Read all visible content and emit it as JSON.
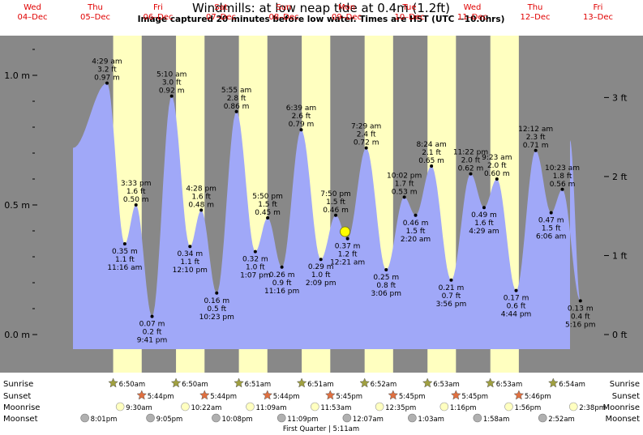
{
  "chart_data": {
    "type": "area",
    "title": "Windmills: at low  neap tide at 0.4m (1.2ft)",
    "subtitle": "Image captured 20 minutes before low water. Times are HST (UTC −10.0hrs)",
    "days": [
      {
        "name": "Wed",
        "date": "04–Dec"
      },
      {
        "name": "Thu",
        "date": "05–Dec"
      },
      {
        "name": "Fri",
        "date": "06–Dec"
      },
      {
        "name": "Sat",
        "date": "07–Dec"
      },
      {
        "name": "Sun",
        "date": "08–Dec"
      },
      {
        "name": "Mon",
        "date": "09–Dec"
      },
      {
        "name": "Tue",
        "date": "10–Dec"
      },
      {
        "name": "Wed",
        "date": "11–Dec"
      },
      {
        "name": "Thu",
        "date": "12–Dec"
      },
      {
        "name": "Fri",
        "date": "13–Dec"
      }
    ],
    "y_left_ticks": [
      "0.0 m",
      "0.5 m",
      "1.0 m"
    ],
    "y_right_ticks": [
      "0 ft",
      "1 ft",
      "2 ft",
      "3 ft"
    ],
    "tides": [
      {
        "day": 1,
        "hour": 4.483,
        "time": "4:29 am",
        "ft": "3.2 ft",
        "m": "0.97 m",
        "height": 0.97,
        "high": true
      },
      {
        "day": 1,
        "hour": 11.267,
        "time": "11:16 am",
        "ft": "1.1 ft",
        "m": "0.35 m",
        "height": 0.35,
        "high": false
      },
      {
        "day": 1,
        "hour": 15.55,
        "time": "3:33 pm",
        "ft": "1.6 ft",
        "m": "0.50 m",
        "height": 0.5,
        "high": true
      },
      {
        "day": 1,
        "hour": 21.683,
        "time": "9:41 pm",
        "ft": "0.2 ft",
        "m": "0.07 m",
        "height": 0.07,
        "high": false
      },
      {
        "day": 2,
        "hour": 5.167,
        "time": "5:10 am",
        "ft": "3.0 ft",
        "m": "0.92 m",
        "height": 0.92,
        "high": true
      },
      {
        "day": 2,
        "hour": 12.167,
        "time": "12:10 pm",
        "ft": "1.1 ft",
        "m": "0.34 m",
        "height": 0.34,
        "high": false
      },
      {
        "day": 2,
        "hour": 16.467,
        "time": "4:28 pm",
        "ft": "1.6 ft",
        "m": "0.48 m",
        "height": 0.48,
        "high": true
      },
      {
        "day": 2,
        "hour": 22.383,
        "time": "10:23 pm",
        "ft": "0.5 ft",
        "m": "0.16 m",
        "height": 0.16,
        "high": false
      },
      {
        "day": 3,
        "hour": 5.917,
        "time": "5:55 am",
        "ft": "2.8 ft",
        "m": "0.86 m",
        "height": 0.86,
        "high": true
      },
      {
        "day": 3,
        "hour": 13.117,
        "time": "1:07 pm",
        "ft": "1.0 ft",
        "m": "0.32 m",
        "height": 0.32,
        "high": false
      },
      {
        "day": 3,
        "hour": 17.833,
        "time": "5:50 pm",
        "ft": "1.5 ft",
        "m": "0.45 m",
        "height": 0.45,
        "high": true
      },
      {
        "day": 3,
        "hour": 23.267,
        "time": "11:16 pm",
        "ft": "0.9 ft",
        "m": "0.26 m",
        "height": 0.26,
        "high": false
      },
      {
        "day": 4,
        "hour": 6.65,
        "time": "6:39 am",
        "ft": "2.6 ft",
        "m": "0.79 m",
        "height": 0.79,
        "high": true
      },
      {
        "day": 4,
        "hour": 14.15,
        "time": "2:09 pm",
        "ft": "1.0 ft",
        "m": "0.29 m",
        "height": 0.29,
        "high": false
      },
      {
        "day": 4,
        "hour": 19.833,
        "time": "7:50 pm",
        "ft": "1.5 ft",
        "m": "0.46 m",
        "height": 0.46,
        "high": true
      },
      {
        "day": 5,
        "hour": 0.35,
        "time": "12:21 am",
        "ft": "1.2 ft",
        "m": "0.37 m",
        "height": 0.37,
        "high": false
      },
      {
        "day": 5,
        "hour": 7.483,
        "time": "7:29 am",
        "ft": "2.4 ft",
        "m": "0.72 m",
        "height": 0.72,
        "high": true
      },
      {
        "day": 5,
        "hour": 15.1,
        "time": "3:06 pm",
        "ft": "0.8 ft",
        "m": "0.25 m",
        "height": 0.25,
        "high": false
      },
      {
        "day": 5,
        "hour": 22.033,
        "time": "10:02 pm",
        "ft": "1.7 ft",
        "m": "0.53 m",
        "height": 0.53,
        "high": true
      },
      {
        "day": 6,
        "hour": 2.333,
        "time": "2:20 am",
        "ft": "1.5 ft",
        "m": "0.46 m",
        "height": 0.46,
        "high": false
      },
      {
        "day": 6,
        "hour": 8.4,
        "time": "8:24 am",
        "ft": "2.1 ft",
        "m": "0.65 m",
        "height": 0.65,
        "high": true
      },
      {
        "day": 6,
        "hour": 15.933,
        "time": "3:56 pm",
        "ft": "0.7 ft",
        "m": "0.21 m",
        "height": 0.21,
        "high": false
      },
      {
        "day": 6,
        "hour": 23.367,
        "time": "11:22 pm",
        "ft": "2.0 ft",
        "m": "0.62 m",
        "height": 0.62,
        "high": true
      },
      {
        "day": 7,
        "hour": 4.483,
        "time": "4:29 am",
        "ft": "1.6 ft",
        "m": "0.49 m",
        "height": 0.49,
        "high": false
      },
      {
        "day": 7,
        "hour": 9.383,
        "time": "9:23 am",
        "ft": "2.0 ft",
        "m": "0.60 m",
        "height": 0.6,
        "high": true
      },
      {
        "day": 7,
        "hour": 16.733,
        "time": "4:44 pm",
        "ft": "0.6 ft",
        "m": "0.17 m",
        "height": 0.17,
        "high": false
      },
      {
        "day": 8,
        "hour": 0.2,
        "time": "12:12 am",
        "ft": "2.3 ft",
        "m": "0.71 m",
        "height": 0.71,
        "high": true
      },
      {
        "day": 8,
        "hour": 6.1,
        "time": "6:06 am",
        "ft": "1.5 ft",
        "m": "0.47 m",
        "height": 0.47,
        "high": false
      },
      {
        "day": 8,
        "hour": 10.383,
        "time": "10:23 am",
        "ft": "1.8 ft",
        "m": "0.56 m",
        "height": 0.56,
        "high": true
      },
      {
        "day": 8,
        "hour": 17.267,
        "time": "5:16 pm",
        "ft": "0.4 ft",
        "m": "0.13 m",
        "height": 0.13,
        "high": false
      }
    ],
    "sunrise": [
      {
        "day": 1,
        "hour": 6.833,
        "label": "6:50am"
      },
      {
        "day": 2,
        "hour": 6.833,
        "label": "6:50am"
      },
      {
        "day": 3,
        "hour": 6.85,
        "label": "6:51am"
      },
      {
        "day": 4,
        "hour": 6.85,
        "label": "6:51am"
      },
      {
        "day": 5,
        "hour": 6.867,
        "label": "6:52am"
      },
      {
        "day": 6,
        "hour": 6.883,
        "label": "6:53am"
      },
      {
        "day": 7,
        "hour": 6.883,
        "label": "6:53am"
      },
      {
        "day": 8,
        "hour": 6.9,
        "label": "6:54am"
      }
    ],
    "sunset": [
      {
        "day": 1,
        "hour": 17.733,
        "label": "5:44pm"
      },
      {
        "day": 2,
        "hour": 17.733,
        "label": "5:44pm"
      },
      {
        "day": 3,
        "hour": 17.733,
        "label": "5:44pm"
      },
      {
        "day": 4,
        "hour": 17.75,
        "label": "5:45pm"
      },
      {
        "day": 5,
        "hour": 17.75,
        "label": "5:45pm"
      },
      {
        "day": 6,
        "hour": 17.75,
        "label": "5:45pm"
      },
      {
        "day": 7,
        "hour": 17.767,
        "label": "5:46pm"
      }
    ],
    "moonrise": [
      {
        "day": 1,
        "hour": 9.5,
        "label": "9:30am"
      },
      {
        "day": 2,
        "hour": 10.367,
        "label": "10:22am"
      },
      {
        "day": 3,
        "hour": 11.15,
        "label": "11:09am"
      },
      {
        "day": 4,
        "hour": 11.883,
        "label": "11:53am"
      },
      {
        "day": 5,
        "hour": 12.583,
        "label": "12:35pm"
      },
      {
        "day": 6,
        "hour": 13.267,
        "label": "1:16pm"
      },
      {
        "day": 7,
        "hour": 13.933,
        "label": "1:56pm"
      },
      {
        "day": 8,
        "hour": 14.633,
        "label": "2:38pm"
      }
    ],
    "moonset": [
      {
        "day": 0,
        "hour": 20.017,
        "label": "8:01pm"
      },
      {
        "day": 1,
        "hour": 21.083,
        "label": "9:05pm"
      },
      {
        "day": 2,
        "hour": 22.133,
        "label": "10:08pm"
      },
      {
        "day": 3,
        "hour": 23.15,
        "label": "11:09pm"
      },
      {
        "day": 5,
        "hour": 0.117,
        "label": "12:07am"
      },
      {
        "day": 6,
        "hour": 1.05,
        "label": "1:03am"
      },
      {
        "day": 7,
        "hour": 1.967,
        "label": "1:58am"
      },
      {
        "day": 8,
        "hour": 2.867,
        "label": "2:52am"
      }
    ],
    "row_labels": {
      "sunrise": "Sunrise",
      "sunset": "Sunset",
      "moonrise": "Moonrise",
      "moonset": "Moonset"
    },
    "moon_phase": {
      "day": 5,
      "hour": 5.183,
      "label": "First Quarter | 5:11am"
    },
    "current_marker": {
      "day": 5,
      "hour": 0.017,
      "height": 0.4
    },
    "colors": {
      "night": "#888888",
      "day": "#ffffc0",
      "water": "#a0a8f8",
      "day_label": "#e00000",
      "sun": "#a0a040",
      "sunset": "#e07040",
      "moonrise": "#ffffc0",
      "moonset": "#b0b0b0",
      "marker": "#ffff00"
    }
  }
}
